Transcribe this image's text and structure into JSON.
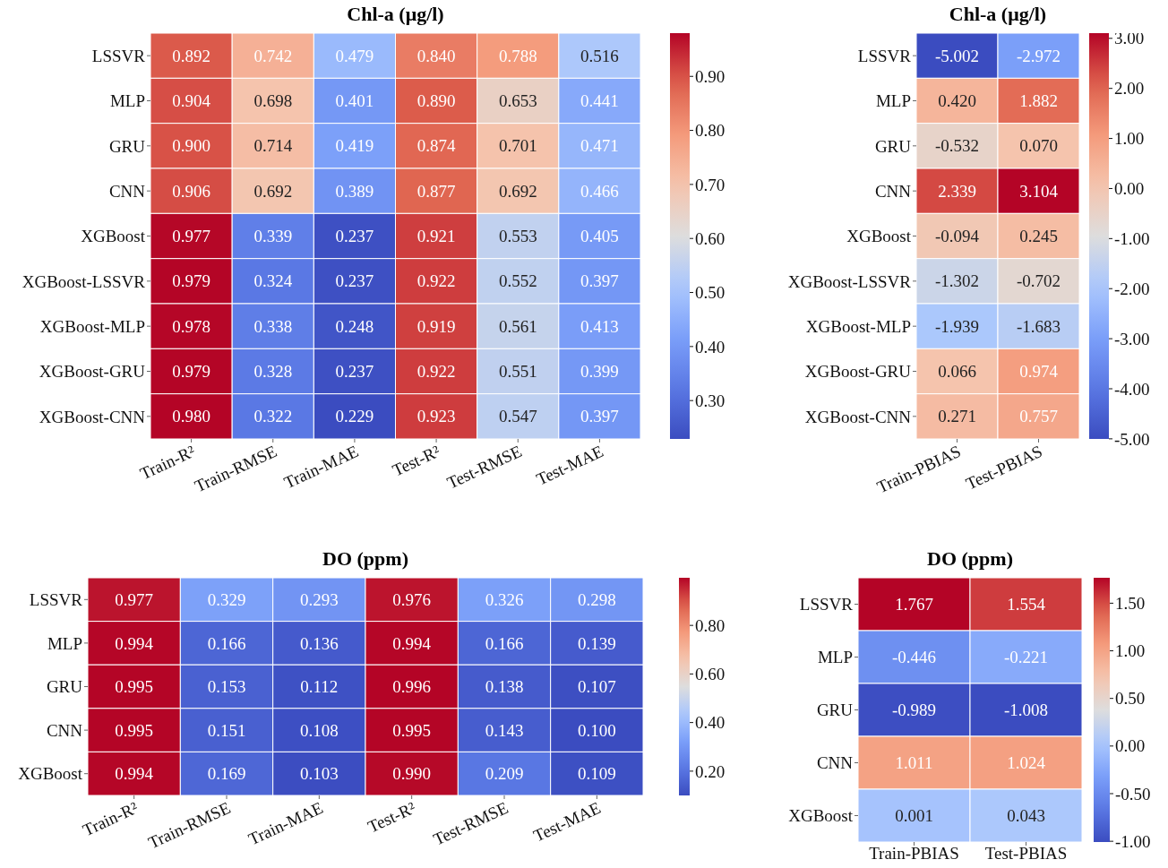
{
  "chart_data": [
    {
      "type": "heatmap",
      "title": "Chl-a (μg/l)",
      "categories": [
        "Train-R²",
        "Train-RMSE",
        "Train-MAE",
        "Test-R²",
        "Test-RMSE",
        "Test-MAE"
      ],
      "y_categories": [
        "LSSVR",
        "MLP",
        "GRU",
        "CNN",
        "XGBoost",
        "XGBoost-LSSVR",
        "XGBoost-MLP",
        "XGBoost-GRU",
        "XGBoost-CNN"
      ],
      "cells": [
        [
          0.892,
          0.742,
          0.479,
          0.84,
          0.788,
          0.516
        ],
        [
          0.904,
          0.698,
          0.401,
          0.89,
          0.653,
          0.441
        ],
        [
          0.9,
          0.714,
          0.419,
          0.874,
          0.701,
          0.471
        ],
        [
          0.906,
          0.692,
          0.389,
          0.877,
          0.692,
          0.466
        ],
        [
          0.977,
          0.339,
          0.237,
          0.921,
          0.553,
          0.405
        ],
        [
          0.979,
          0.324,
          0.237,
          0.922,
          0.552,
          0.397
        ],
        [
          0.978,
          0.338,
          0.248,
          0.919,
          0.561,
          0.413
        ],
        [
          0.979,
          0.328,
          0.237,
          0.922,
          0.551,
          0.399
        ],
        [
          0.98,
          0.322,
          0.229,
          0.923,
          0.547,
          0.397
        ]
      ],
      "cell_labels": [
        [
          "0.892",
          "0.742",
          "0.479",
          "0.840",
          "0.788",
          "0.516"
        ],
        [
          "0.904",
          "0.698",
          "0.401",
          "0.890",
          "0.653",
          "0.441"
        ],
        [
          "0.900",
          "0.714",
          "0.419",
          "0.874",
          "0.701",
          "0.471"
        ],
        [
          "0.906",
          "0.692",
          "0.389",
          "0.877",
          "0.692",
          "0.466"
        ],
        [
          "0.977",
          "0.339",
          "0.237",
          "0.921",
          "0.553",
          "0.405"
        ],
        [
          "0.979",
          "0.324",
          "0.237",
          "0.922",
          "0.552",
          "0.397"
        ],
        [
          "0.978",
          "0.338",
          "0.248",
          "0.919",
          "0.561",
          "0.413"
        ],
        [
          "0.979",
          "0.328",
          "0.237",
          "0.922",
          "0.551",
          "0.399"
        ],
        [
          "0.980",
          "0.322",
          "0.229",
          "0.923",
          "0.547",
          "0.397"
        ]
      ],
      "clim": [
        0.229,
        0.98
      ],
      "cticks": [
        {
          "value": 0.3,
          "label": "0.30"
        },
        {
          "value": 0.4,
          "label": "0.40"
        },
        {
          "value": 0.5,
          "label": "0.50"
        },
        {
          "value": 0.6,
          "label": "0.60"
        },
        {
          "value": 0.7,
          "label": "0.70"
        },
        {
          "value": 0.8,
          "label": "0.80"
        },
        {
          "value": 0.9,
          "label": "0.90"
        }
      ]
    },
    {
      "type": "heatmap",
      "title": "Chl-a (μg/l)",
      "categories": [
        "Train-PBIAS",
        "Test-PBIAS"
      ],
      "y_categories": [
        "LSSVR",
        "MLP",
        "GRU",
        "CNN",
        "XGBoost",
        "XGBoost-LSSVR",
        "XGBoost-MLP",
        "XGBoost-GRU",
        "XGBoost-CNN"
      ],
      "cells": [
        [
          -5.002,
          -2.972
        ],
        [
          0.42,
          1.882
        ],
        [
          -0.532,
          0.07
        ],
        [
          2.339,
          3.104
        ],
        [
          -0.094,
          0.245
        ],
        [
          -1.302,
          -0.702
        ],
        [
          -1.939,
          -1.683
        ],
        [
          0.066,
          0.974
        ],
        [
          0.271,
          0.757
        ]
      ],
      "cell_labels": [
        [
          "-5.002",
          "-2.972"
        ],
        [
          "0.420",
          "1.882"
        ],
        [
          "-0.532",
          "0.070"
        ],
        [
          "2.339",
          "3.104"
        ],
        [
          "-0.094",
          "0.245"
        ],
        [
          "-1.302",
          "-0.702"
        ],
        [
          "-1.939",
          "-1.683"
        ],
        [
          "0.066",
          "0.974"
        ],
        [
          "0.271",
          "0.757"
        ]
      ],
      "clim": [
        -5.002,
        3.104
      ],
      "cticks": [
        {
          "value": -5,
          "label": "-5.00"
        },
        {
          "value": -4,
          "label": "-4.00"
        },
        {
          "value": -3,
          "label": "-3.00"
        },
        {
          "value": -2,
          "label": "-2.00"
        },
        {
          "value": -1,
          "label": "-1.00"
        },
        {
          "value": 0,
          "label": "0.00"
        },
        {
          "value": 1,
          "label": "1.00"
        },
        {
          "value": 2,
          "label": "2.00"
        },
        {
          "value": 3,
          "label": "3.00"
        }
      ]
    },
    {
      "type": "heatmap",
      "title": "DO (ppm)",
      "categories": [
        "Train-R²",
        "Train-RMSE",
        "Train-MAE",
        "Test-R²",
        "Test-RMSE",
        "Test-MAE"
      ],
      "y_categories": [
        "LSSVR",
        "MLP",
        "GRU",
        "CNN",
        "XGBoost"
      ],
      "cells": [
        [
          0.977,
          0.329,
          0.293,
          0.976,
          0.326,
          0.298
        ],
        [
          0.994,
          0.166,
          0.136,
          0.994,
          0.166,
          0.139
        ],
        [
          0.995,
          0.153,
          0.112,
          0.996,
          0.138,
          0.107
        ],
        [
          0.995,
          0.151,
          0.108,
          0.995,
          0.143,
          0.1
        ],
        [
          0.994,
          0.169,
          0.103,
          0.99,
          0.209,
          0.109
        ]
      ],
      "cell_labels": [
        [
          "0.977",
          "0.329",
          "0.293",
          "0.976",
          "0.326",
          "0.298"
        ],
        [
          "0.994",
          "0.166",
          "0.136",
          "0.994",
          "0.166",
          "0.139"
        ],
        [
          "0.995",
          "0.153",
          "0.112",
          "0.996",
          "0.138",
          "0.107"
        ],
        [
          "0.995",
          "0.151",
          "0.108",
          "0.995",
          "0.143",
          "0.100"
        ],
        [
          "0.994",
          "0.169",
          "0.103",
          "0.990",
          "0.209",
          "0.109"
        ]
      ],
      "clim": [
        0.1,
        0.996
      ],
      "cticks": [
        {
          "value": 0.2,
          "label": "0.20"
        },
        {
          "value": 0.4,
          "label": "0.40"
        },
        {
          "value": 0.6,
          "label": "0.60"
        },
        {
          "value": 0.8,
          "label": "0.80"
        }
      ]
    },
    {
      "type": "heatmap",
      "title": "DO (ppm)",
      "categories": [
        "Train-PBIAS",
        "Test-PBIAS"
      ],
      "y_categories": [
        "LSSVR",
        "MLP",
        "GRU",
        "CNN",
        "XGBoost"
      ],
      "cells": [
        [
          1.767,
          1.554
        ],
        [
          -0.446,
          -0.221
        ],
        [
          -0.989,
          -1.008
        ],
        [
          1.011,
          1.024
        ],
        [
          0.001,
          0.043
        ]
      ],
      "cell_labels": [
        [
          "1.767",
          "1.554"
        ],
        [
          "-0.446",
          "-0.221"
        ],
        [
          "-0.989",
          "-1.008"
        ],
        [
          "1.011",
          "1.024"
        ],
        [
          "0.001",
          "0.043"
        ]
      ],
      "clim": [
        -1.008,
        1.767
      ],
      "cticks": [
        {
          "value": -1,
          "label": "-1.00"
        },
        {
          "value": -0.5,
          "label": "-0.50"
        },
        {
          "value": 0,
          "label": "0.00"
        },
        {
          "value": 0.5,
          "label": "0.50"
        },
        {
          "value": 1,
          "label": "1.00"
        },
        {
          "value": 1.5,
          "label": "1.50"
        }
      ]
    }
  ]
}
